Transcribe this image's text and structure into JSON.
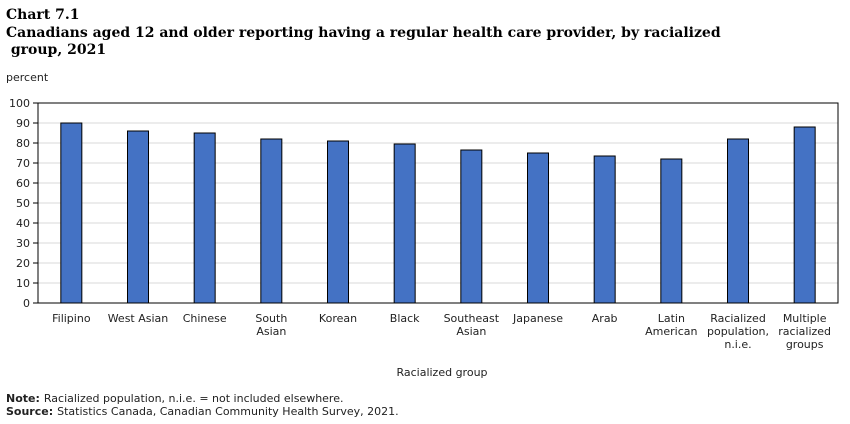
{
  "chart_data": {
    "type": "bar",
    "label": "Chart 7.1",
    "title": "Canadians aged 12 and older reporting having a regular health care provider, by racialized group, 2021",
    "y_label": "percent",
    "x_label": "Racialized group",
    "categories": [
      [
        "Filipino"
      ],
      [
        "West Asian"
      ],
      [
        "Chinese"
      ],
      [
        "South",
        "Asian"
      ],
      [
        "Korean"
      ],
      [
        "Black"
      ],
      [
        "Southeast",
        "Asian"
      ],
      [
        "Japanese"
      ],
      [
        "Arab"
      ],
      [
        "Latin",
        "American"
      ],
      [
        "Racialized",
        "population,",
        "n.i.e."
      ],
      [
        "Multiple",
        "racialized",
        "groups"
      ]
    ],
    "values": [
      90,
      86,
      85,
      82,
      81,
      79.5,
      76.5,
      75,
      73.5,
      72,
      82,
      88
    ],
    "color": "#4472c4",
    "ylim": [
      0,
      100
    ],
    "yticks": [
      0,
      10,
      20,
      30,
      40,
      50,
      60,
      70,
      80,
      90,
      100
    ],
    "grid": true
  },
  "notes": [
    {
      "label": "Note:",
      "text": "Racialized population, n.i.e. = not included elsewhere."
    },
    {
      "label": "Source:",
      "text": "Statistics Canada, Canadian Community Health Survey, 2021."
    }
  ]
}
